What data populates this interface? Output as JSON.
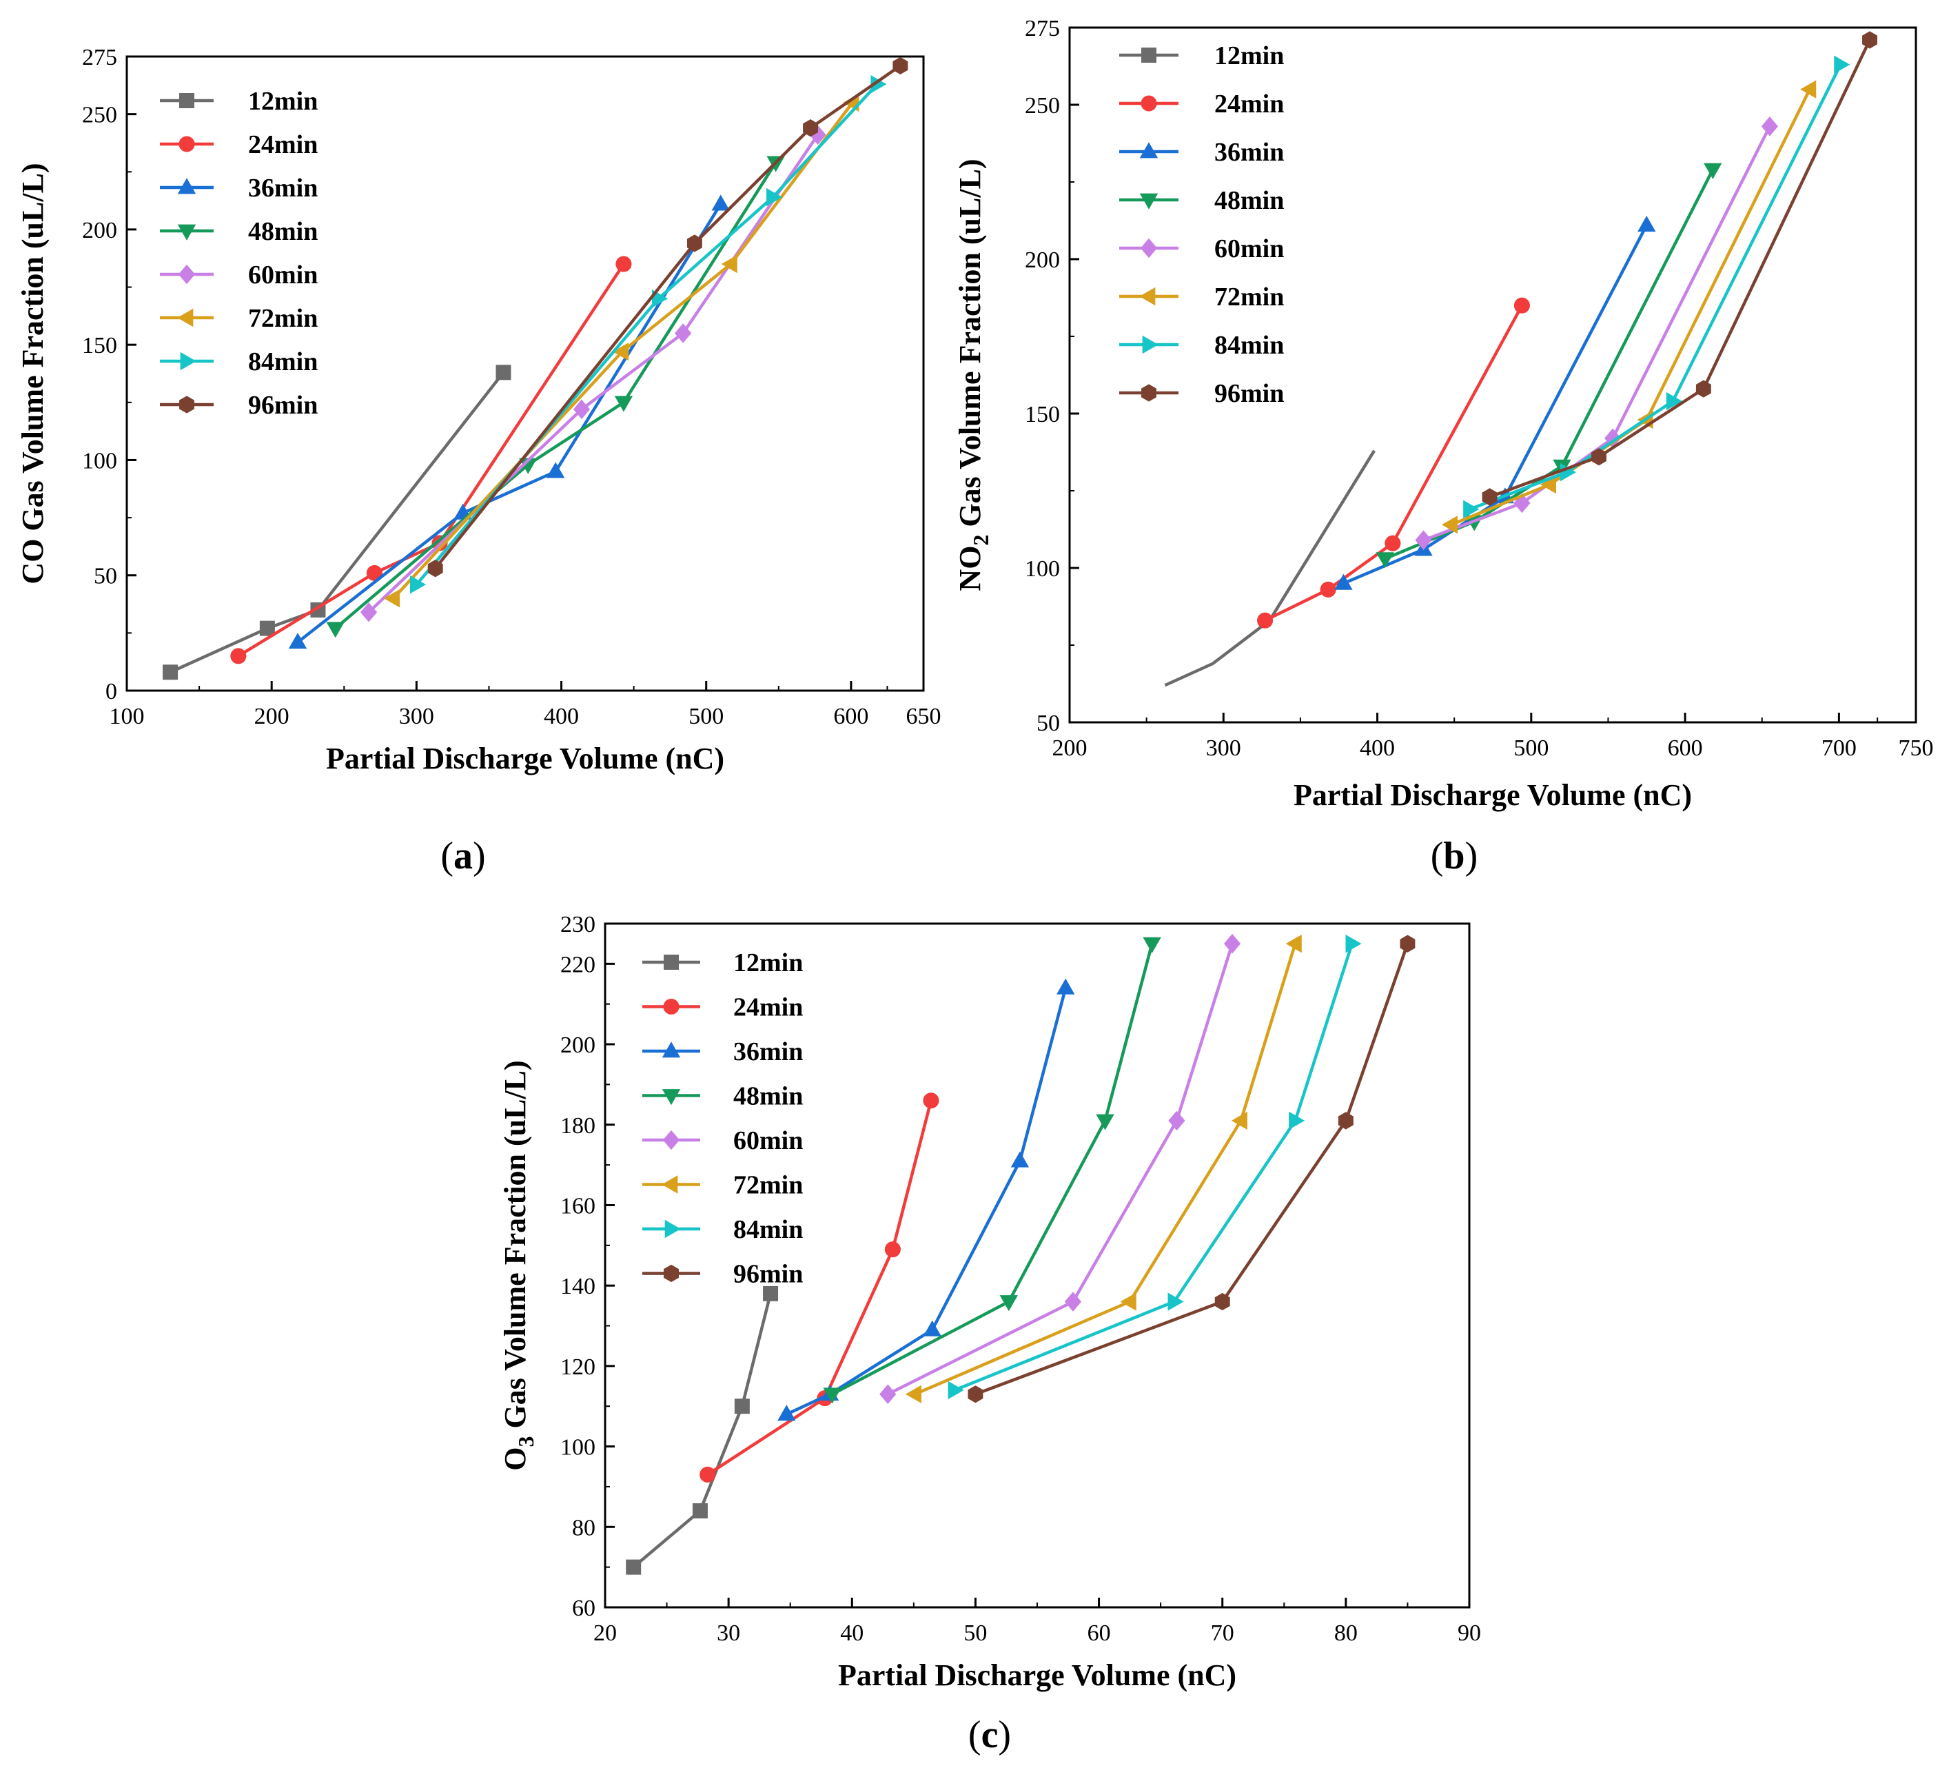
{
  "colors": {
    "12min": "#6b6b6b",
    "24min": "#f23b3b",
    "36min": "#1a6fd4",
    "48min": "#169a5a",
    "60min": "#c880e6",
    "72min": "#d9a01c",
    "84min": "#17c4c8",
    "96min": "#7a4030"
  },
  "chart_data": [
    {
      "type": "line",
      "panel_label": "(a)",
      "panel_letter": "a",
      "xlabel": "Partial Discharge Volume (nC)",
      "ylabel_prefix": "CO",
      "ylabel_sub": "",
      "ylabel_rest": " Gas Volume Fraction (uL/L)",
      "xlim": [
        100,
        650
      ],
      "ylim": [
        0,
        275
      ],
      "xticks": [
        100,
        200,
        300,
        400,
        500,
        600,
        650
      ],
      "yticks": [
        0,
        50,
        100,
        150,
        200,
        250,
        275
      ],
      "legend_position": "top-left",
      "series": [
        {
          "name": "12min",
          "marker": "square",
          "x": [
            130,
            197,
            232,
            360
          ],
          "y": [
            8,
            27,
            35,
            138
          ]
        },
        {
          "name": "24min",
          "marker": "circle",
          "x": [
            177,
            271,
            316,
            443
          ],
          "y": [
            15,
            51,
            64,
            185
          ]
        },
        {
          "name": "36min",
          "marker": "triangle-up",
          "x": [
            218,
            332,
            396,
            510
          ],
          "y": [
            21,
            77,
            95,
            211
          ]
        },
        {
          "name": "48min",
          "marker": "triangle-down",
          "x": [
            244,
            377,
            443,
            548
          ],
          "y": [
            27,
            98,
            125,
            229
          ]
        },
        {
          "name": "60min",
          "marker": "diamond",
          "x": [
            267,
            414,
            484,
            577
          ],
          "y": [
            34,
            122,
            155,
            241
          ]
        },
        {
          "name": "72min",
          "marker": "triangle-left",
          "x": [
            284,
            442,
            517,
            601
          ],
          "y": [
            40,
            147,
            185,
            255
          ]
        },
        {
          "name": "84min",
          "marker": "triangle-right",
          "x": [
            300,
            467,
            546,
            618
          ],
          "y": [
            46,
            170,
            214,
            263
          ]
        },
        {
          "name": "96min",
          "marker": "hexagon",
          "x": [
            313,
            492,
            572,
            634
          ],
          "y": [
            53,
            194,
            244,
            271
          ]
        }
      ]
    },
    {
      "type": "line",
      "panel_label": "(b)",
      "panel_letter": "b",
      "xlabel": "Partial Discharge Volume (nC)",
      "ylabel_prefix": "NO",
      "ylabel_sub": "2",
      "ylabel_rest": " Gas Volume Fraction (uL/L)",
      "xlim": [
        200,
        750
      ],
      "ylim": [
        50,
        275
      ],
      "xticks": [
        200,
        300,
        400,
        500,
        600,
        700,
        750
      ],
      "yticks": [
        50,
        100,
        150,
        200,
        250,
        275
      ],
      "legend_position": "top-left",
      "series": [
        {
          "name": "12min",
          "marker": "none",
          "x": [
            262,
            293,
            330,
            398
          ],
          "y": [
            62,
            69,
            83,
            138
          ]
        },
        {
          "name": "24min",
          "marker": "circle",
          "x": [
            327,
            368,
            410,
            494
          ],
          "y": [
            83,
            93,
            108,
            185
          ]
        },
        {
          "name": "36min",
          "marker": "triangle-up",
          "x": [
            378,
            430,
            483,
            575
          ],
          "y": [
            95,
            106,
            123,
            211
          ]
        },
        {
          "name": "48min",
          "marker": "triangle-down",
          "x": [
            405,
            463,
            520,
            618
          ],
          "y": [
            103,
            115,
            133,
            229
          ]
        },
        {
          "name": "60min",
          "marker": "diamond",
          "x": [
            430,
            494,
            553,
            655
          ],
          "y": [
            109,
            121,
            142,
            243
          ]
        },
        {
          "name": "72min",
          "marker": "triangle-left",
          "x": [
            448,
            512,
            575,
            681
          ],
          "y": [
            114,
            127,
            148,
            255
          ]
        },
        {
          "name": "84min",
          "marker": "triangle-right",
          "x": [
            460,
            523,
            592,
            701
          ],
          "y": [
            119,
            131,
            154,
            263
          ]
        },
        {
          "name": "96min",
          "marker": "hexagon",
          "x": [
            473,
            544,
            612,
            720
          ],
          "y": [
            123,
            136,
            158,
            271
          ]
        }
      ]
    },
    {
      "type": "line",
      "panel_label": "(c)",
      "panel_letter": "c",
      "xlabel": "Partial Discharge Volume (nC)",
      "ylabel_prefix": "O",
      "ylabel_sub": "3",
      "ylabel_rest": " Gas Volume Fraction (uL/L)",
      "xlim": [
        20,
        90
      ],
      "ylim": [
        60,
        230
      ],
      "xticks": [
        20,
        30,
        40,
        50,
        60,
        70,
        80,
        90
      ],
      "yticks": [
        60,
        80,
        100,
        120,
        140,
        160,
        180,
        200,
        220,
        230
      ],
      "legend_position": "top-left",
      "series": [
        {
          "name": "12min",
          "marker": "square",
          "x": [
            22.3,
            27.7,
            31.1,
            33.4
          ],
          "y": [
            70,
            84,
            110,
            138
          ]
        },
        {
          "name": "24min",
          "marker": "circle",
          "x": [
            28.3,
            37.8,
            43.3,
            46.4
          ],
          "y": [
            93,
            112,
            149,
            186
          ]
        },
        {
          "name": "36min",
          "marker": "triangle-up",
          "x": [
            34.7,
            38.2,
            46.5,
            53.6,
            57.3
          ],
          "y": [
            108,
            113,
            129,
            171,
            214
          ]
        },
        {
          "name": "48min",
          "marker": "triangle-down",
          "x": [
            38.4,
            52.7,
            60.5,
            64.3
          ],
          "y": [
            113,
            136,
            181,
            225
          ]
        },
        {
          "name": "60min",
          "marker": "diamond",
          "x": [
            42.9,
            57.9,
            66.3,
            70.8
          ],
          "y": [
            113,
            136,
            181,
            225
          ]
        },
        {
          "name": "72min",
          "marker": "triangle-left",
          "x": [
            45.1,
            62.5,
            71.5,
            75.9
          ],
          "y": [
            113,
            136,
            181,
            225
          ]
        },
        {
          "name": "84min",
          "marker": "triangle-right",
          "x": [
            48.3,
            66.1,
            75.9,
            80.5
          ],
          "y": [
            114,
            136,
            181,
            225
          ]
        },
        {
          "name": "96min",
          "marker": "hexagon",
          "x": [
            50,
            70,
            80,
            85
          ],
          "y": [
            113,
            136,
            181,
            225
          ]
        }
      ]
    }
  ]
}
